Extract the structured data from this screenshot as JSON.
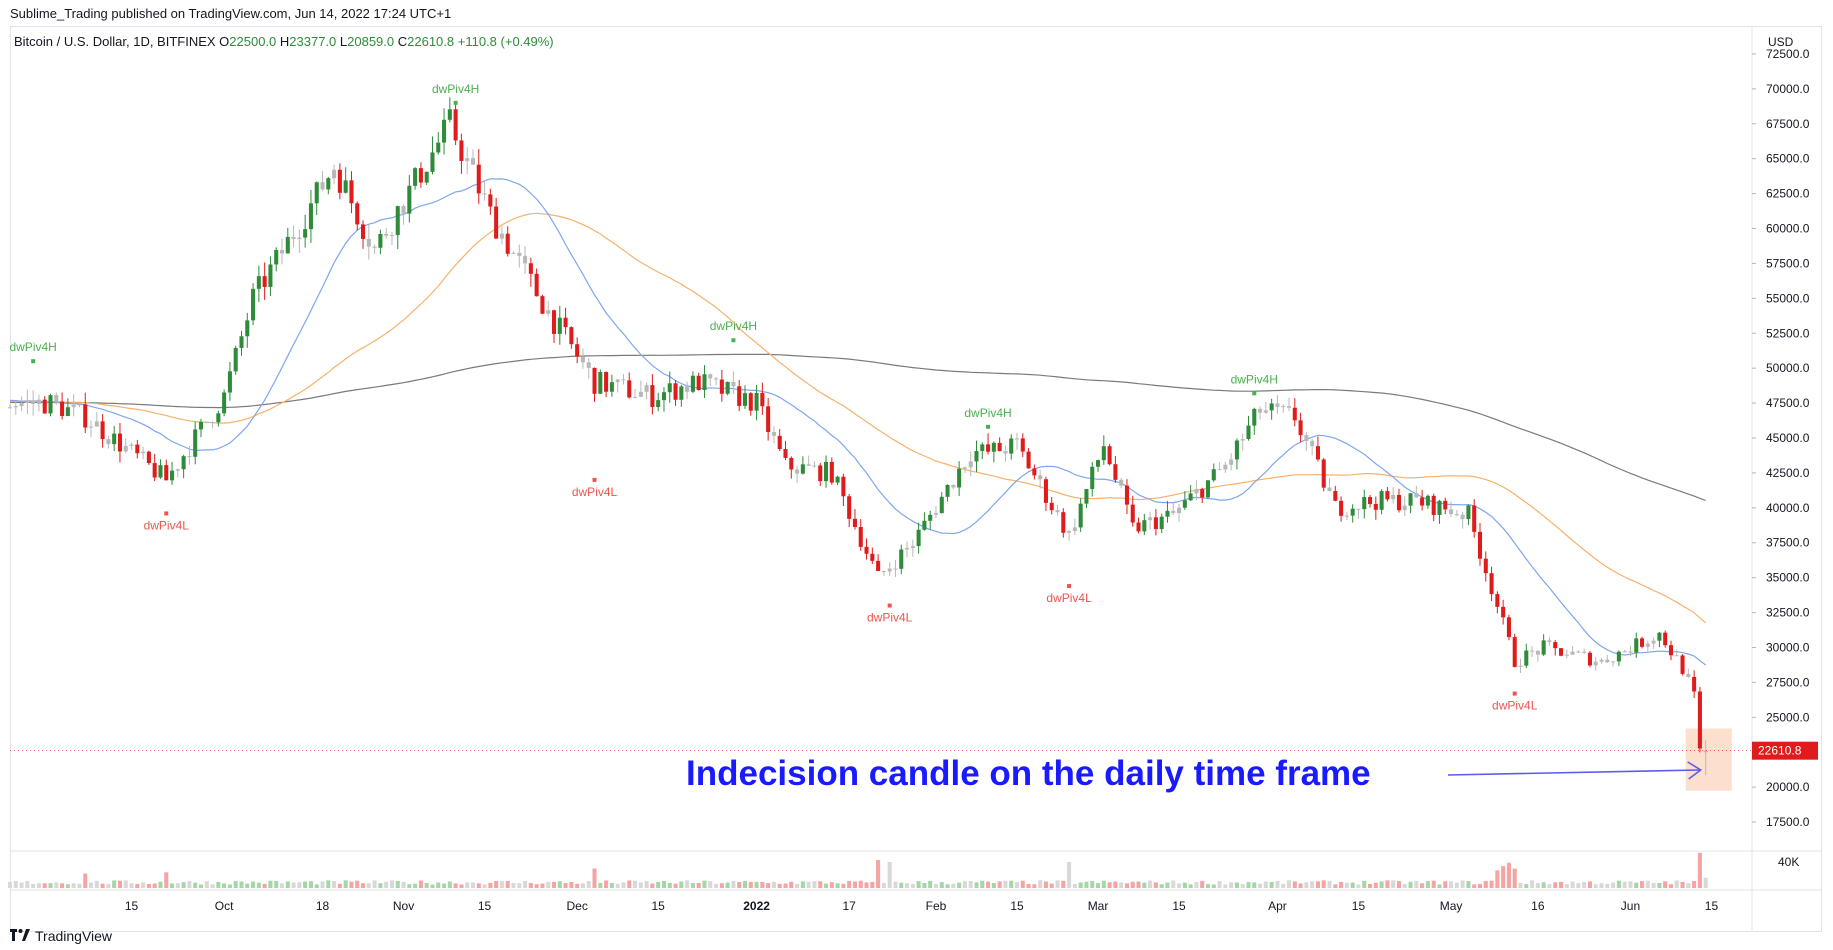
{
  "header": {
    "published": "Sublime_Trading published on TradingView.com, Jun 14, 2022 17:24 UTC+1",
    "symbol": "Bitcoin / U.S. Dollar, 1D, BITFINEX",
    "o_label": "O",
    "o_value": "22500.0",
    "h_label": "H",
    "h_value": "23377.0",
    "l_label": "L",
    "l_value": "20859.0",
    "c_label": "C",
    "c_value": "22610.8",
    "change": "+110.8 (+0.49%)"
  },
  "footer": {
    "brand": "TradingView"
  },
  "colors": {
    "up": "#2e8b3a",
    "down": "#e01b1b",
    "neutral": "#b8b8b8",
    "ma_fast": "#7ea6f0",
    "ma_mid": "#f6b26b",
    "ma_slow": "#7a7a7a",
    "annotation": "#1a1aff",
    "pivot_high": "#4caf50",
    "pivot_low": "#ef5350",
    "price_badge": "#e01b1b",
    "highlight": "#fbd9c3"
  },
  "chart_data": {
    "type": "candlestick",
    "ylabel": "USD",
    "ylim": [
      15500,
      74500
    ],
    "y_ticks": [
      "72500.0",
      "70000.0",
      "67500.0",
      "65000.0",
      "62500.0",
      "60000.0",
      "57500.0",
      "55000.0",
      "52500.0",
      "50000.0",
      "47500.0",
      "45000.0",
      "42500.0",
      "40000.0",
      "37500.0",
      "35000.0",
      "32500.0",
      "30000.0",
      "27500.0",
      "25000.0",
      "22500.0",
      "20000.0",
      "17500.0"
    ],
    "y_tick_values": [
      72500,
      70000,
      67500,
      65000,
      62500,
      60000,
      57500,
      55000,
      52500,
      50000,
      47500,
      45000,
      42500,
      40000,
      37500,
      35000,
      32500,
      30000,
      27500,
      25000,
      22500,
      20000,
      17500
    ],
    "x_labels": [
      "15",
      "Oct",
      "18",
      "Nov",
      "15",
      "Dec",
      "15",
      "2022",
      "17",
      "Feb",
      "15",
      "Mar",
      "15",
      "Apr",
      "15",
      "May",
      "16",
      "Jun",
      "15"
    ],
    "x_label_dates": [
      "2021-09-15",
      "2021-10-01",
      "2021-10-18",
      "2021-11-01",
      "2021-11-15",
      "2021-12-01",
      "2021-12-15",
      "2022-01-01",
      "2022-01-17",
      "2022-02-01",
      "2022-02-15",
      "2022-03-01",
      "2022-03-15",
      "2022-04-01",
      "2022-04-15",
      "2022-05-01",
      "2022-05-16",
      "2022-06-01",
      "2022-06-15"
    ],
    "close_key_dates": [
      "2021-09-01",
      "2021-09-07",
      "2021-09-21",
      "2021-10-01",
      "2021-10-06",
      "2021-10-15",
      "2021-10-20",
      "2021-10-27",
      "2021-11-09",
      "2021-11-16",
      "2021-11-26",
      "2021-12-04",
      "2021-12-14",
      "2021-12-22",
      "2022-01-01",
      "2022-01-06",
      "2022-01-14",
      "2022-01-22",
      "2022-01-28",
      "2022-02-07",
      "2022-02-10",
      "2022-02-15",
      "2022-02-24",
      "2022-03-02",
      "2022-03-07",
      "2022-03-14",
      "2022-03-23",
      "2022-03-29",
      "2022-04-04",
      "2022-04-11",
      "2022-04-18",
      "2022-04-25",
      "2022-05-04",
      "2022-05-09",
      "2022-05-12",
      "2022-05-17",
      "2022-05-27",
      "2022-06-01",
      "2022-06-06",
      "2022-06-10",
      "2022-06-12",
      "2022-06-13"
    ],
    "close_key_values": [
      47500,
      46500,
      42000,
      48000,
      55000,
      61000,
      64500,
      58500,
      67500,
      61000,
      54000,
      49000,
      48000,
      49000,
      47500,
      43000,
      42500,
      35000,
      37500,
      44000,
      44000,
      44500,
      38000,
      44500,
      38500,
      39500,
      43000,
      47000,
      46500,
      40000,
      40500,
      40500,
      39500,
      33000,
      29000,
      30000,
      29000,
      30000,
      31000,
      28500,
      26500,
      22500
    ],
    "last_bar": {
      "date": "2022-06-14",
      "open": 22500.0,
      "high": 23377.0,
      "low": 20859.0,
      "close": 22610.8
    },
    "last_price_label": "22610.8",
    "volume_label": "40K",
    "volume_spike_dates": [
      "2021-09-07",
      "2021-09-21",
      "2021-12-04",
      "2022-01-22",
      "2022-01-24",
      "2022-02-24",
      "2022-05-09",
      "2022-05-10",
      "2022-05-11",
      "2022-05-12",
      "2022-06-13"
    ],
    "pivots": [
      {
        "label": "dwPiv4H",
        "date": "2021-08-29",
        "value": 50500,
        "kind": "high"
      },
      {
        "label": "dwPiv4L",
        "date": "2021-09-21",
        "value": 39600,
        "kind": "low"
      },
      {
        "label": "dwPiv4H",
        "date": "2021-11-10",
        "value": 69000,
        "kind": "high"
      },
      {
        "label": "dwPiv4L",
        "date": "2021-12-04",
        "value": 42000,
        "kind": "low"
      },
      {
        "label": "dwPiv4H",
        "date": "2021-12-28",
        "value": 52000,
        "kind": "high"
      },
      {
        "label": "dwPiv4L",
        "date": "2022-01-24",
        "value": 33000,
        "kind": "low"
      },
      {
        "label": "dwPiv4H",
        "date": "2022-02-10",
        "value": 45800,
        "kind": "high"
      },
      {
        "label": "dwPiv4L",
        "date": "2022-02-24",
        "value": 34400,
        "kind": "low"
      },
      {
        "label": "dwPiv4H",
        "date": "2022-03-28",
        "value": 48200,
        "kind": "high"
      },
      {
        "label": "dwPiv4L",
        "date": "2022-05-12",
        "value": 26700,
        "kind": "low"
      }
    ],
    "annotation": "Indecision candle on the daily time frame"
  }
}
